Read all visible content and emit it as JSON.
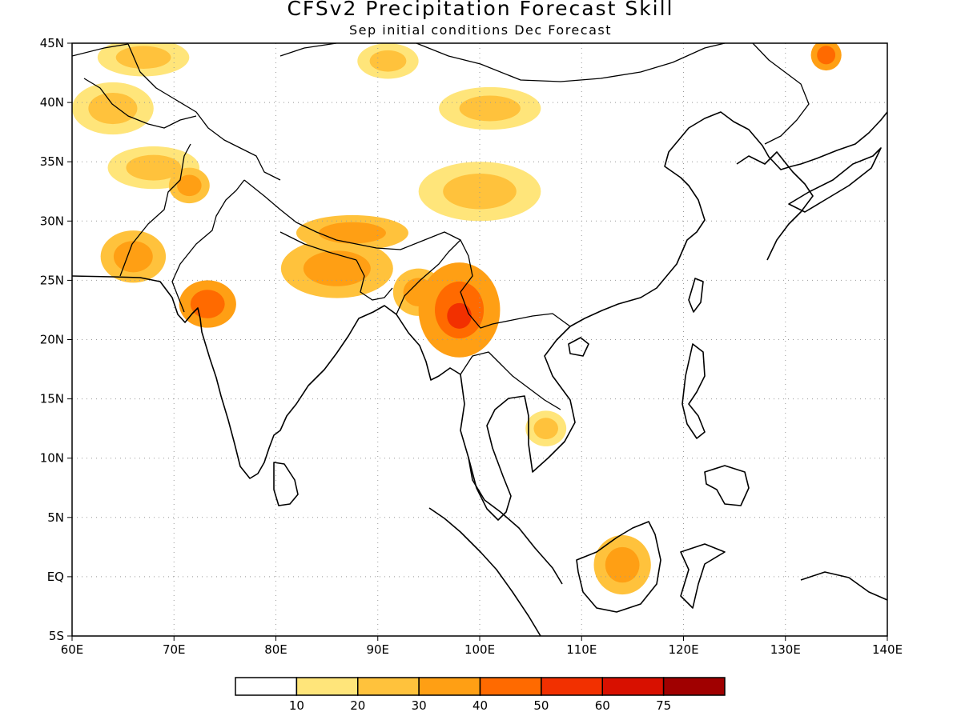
{
  "title": "CFSv2 Precipitation Forecast Skill",
  "subtitle": "Sep initial conditions  Dec Forecast",
  "map": {
    "lon_range": [
      60,
      140
    ],
    "lat_range": [
      -5,
      45
    ],
    "lon_ticks": [
      "60E",
      "70E",
      "80E",
      "90E",
      "100E",
      "110E",
      "120E",
      "130E",
      "140E"
    ],
    "lat_ticks": [
      "5S",
      "EQ",
      "5N",
      "10N",
      "15N",
      "20N",
      "25N",
      "30N",
      "35N",
      "40N",
      "45N"
    ],
    "grid": true
  },
  "colorbar": {
    "labels": [
      "10",
      "20",
      "30",
      "40",
      "50",
      "60",
      "75"
    ],
    "colors": [
      "#ffffff",
      "#ffe57a",
      "#ffc23c",
      "#ff9f14",
      "#ff6a00",
      "#f23000",
      "#d81000",
      "#a00000"
    ]
  },
  "skill_regions": [
    {
      "lon": 67,
      "lat": 43.8,
      "rx": 4.5,
      "ry": 1.6,
      "level": 2
    },
    {
      "lon": 64,
      "lat": 39.5,
      "rx": 4,
      "ry": 2.2,
      "level": 2
    },
    {
      "lon": 68,
      "lat": 34.5,
      "rx": 4.5,
      "ry": 1.8,
      "level": 2
    },
    {
      "lon": 71.5,
      "lat": 33,
      "rx": 2,
      "ry": 1.5,
      "level": 3
    },
    {
      "lon": 66,
      "lat": 27,
      "rx": 3.2,
      "ry": 2.2,
      "level": 3
    },
    {
      "lon": 73.3,
      "lat": 23,
      "rx": 2.8,
      "ry": 2,
      "level": 4
    },
    {
      "lon": 86,
      "lat": 26,
      "rx": 5.5,
      "ry": 2.5,
      "level": 3
    },
    {
      "lon": 87.5,
      "lat": 29,
      "rx": 5.5,
      "ry": 1.5,
      "level": 3
    },
    {
      "lon": 91,
      "lat": 43.5,
      "rx": 3,
      "ry": 1.5,
      "level": 2
    },
    {
      "lon": 101,
      "lat": 39.5,
      "rx": 5,
      "ry": 1.8,
      "level": 2
    },
    {
      "lon": 100,
      "lat": 32.5,
      "rx": 6,
      "ry": 2.5,
      "level": 2
    },
    {
      "lon": 94,
      "lat": 24,
      "rx": 2.5,
      "ry": 2,
      "level": 3
    },
    {
      "lon": 98,
      "lat": 22.5,
      "rx": 4,
      "ry": 4,
      "level": 4
    },
    {
      "lon": 98,
      "lat": 22,
      "rx": 2,
      "ry": 1.8,
      "level": 5
    },
    {
      "lon": 106.5,
      "lat": 12.5,
      "rx": 2,
      "ry": 1.5,
      "level": 2
    },
    {
      "lon": 114,
      "lat": 1,
      "rx": 2.8,
      "ry": 2.5,
      "level": 3
    },
    {
      "lon": 134,
      "lat": 44,
      "rx": 1.5,
      "ry": 1.3,
      "level": 4
    }
  ]
}
